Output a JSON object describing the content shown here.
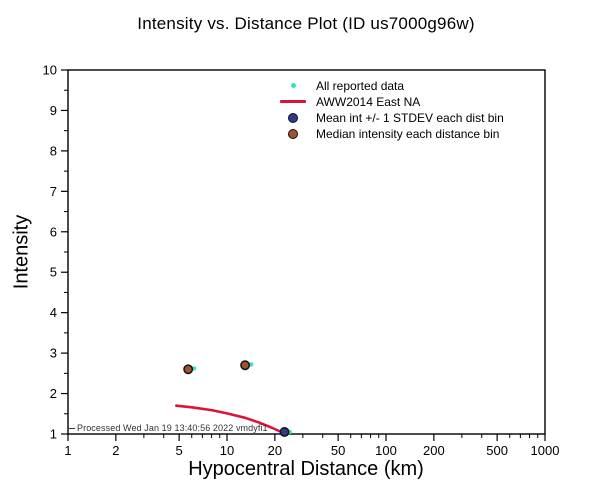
{
  "chart_data": {
    "type": "scatter",
    "title": "Intensity vs. Distance Plot (ID us7000g96w)",
    "xlabel": "Hypocentral Distance (km)",
    "ylabel": "Intensity",
    "x_scale": "log",
    "x_range": [
      1,
      1000
    ],
    "x_ticks": [
      1,
      2,
      5,
      10,
      20,
      50,
      100,
      200,
      500,
      1000
    ],
    "y_range": [
      1,
      10
    ],
    "y_ticks": [
      1,
      2,
      3,
      4,
      5,
      6,
      7,
      8,
      9,
      10
    ],
    "grid": false,
    "legend_position": "upper-center-inside",
    "processed_note": "Processed Wed Jan 19 13:40:56 2022 vmdyfi1",
    "colors": {
      "all_data": "#35e3c1",
      "curve": "#dc143c",
      "mean": "#30398a",
      "median": "#a0522d",
      "marker_edge": "#111111"
    },
    "series": [
      {
        "name": "All reported data",
        "type": "scatter",
        "marker": "dot",
        "color_key": "all_data",
        "points": [
          [
            6.2,
            2.62
          ],
          [
            14.2,
            2.72
          ],
          [
            24.8,
            1.05
          ]
        ]
      },
      {
        "name": "AWW2014 East NA",
        "type": "line",
        "color_key": "curve",
        "points": [
          [
            4.8,
            1.7
          ],
          [
            6.0,
            1.66
          ],
          [
            8.0,
            1.59
          ],
          [
            10.0,
            1.51
          ],
          [
            13.0,
            1.4
          ],
          [
            16.0,
            1.28
          ],
          [
            19.0,
            1.16
          ],
          [
            22.0,
            1.05
          ],
          [
            23.3,
            1.0
          ]
        ]
      },
      {
        "name": "Mean int +/- 1 STDEV each dist bin",
        "type": "scatter",
        "marker": "circle",
        "color_key": "mean",
        "points": [
          [
            23.0,
            1.05
          ]
        ]
      },
      {
        "name": "Median intensity each distance bin",
        "type": "scatter",
        "marker": "circle",
        "color_key": "median",
        "points": [
          [
            5.7,
            2.6
          ],
          [
            13.0,
            2.7
          ]
        ]
      }
    ]
  }
}
